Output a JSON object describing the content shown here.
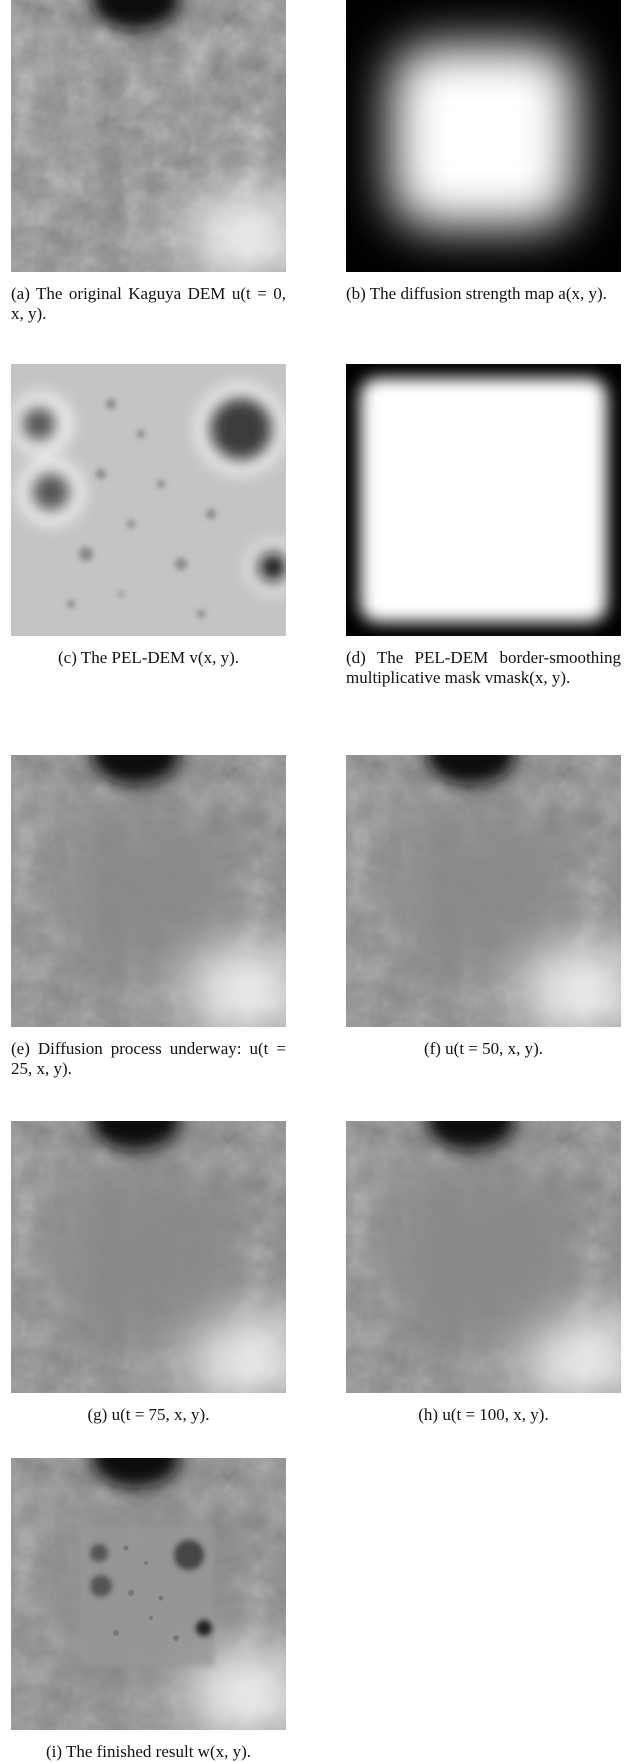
{
  "figures": [
    {
      "caption": "(a) The original Kaguya DEM u(t = 0, x, y)."
    },
    {
      "caption": "(b) The diffusion strength map a(x, y)."
    },
    {
      "caption": "(c) The PEL-DEM v(x, y)."
    },
    {
      "caption": "(d) The PEL-DEM border-smoothing multiplicative mask vmask(x, y)."
    },
    {
      "caption": "(e) Diffusion process underway: u(t = 25, x, y)."
    },
    {
      "caption": "(f) u(t = 50, x, y)."
    },
    {
      "caption": "(g) u(t = 75, x, y)."
    },
    {
      "caption": "(h) u(t = 100, x, y)."
    },
    {
      "caption": "(i) The finished result w(x, y)."
    }
  ]
}
